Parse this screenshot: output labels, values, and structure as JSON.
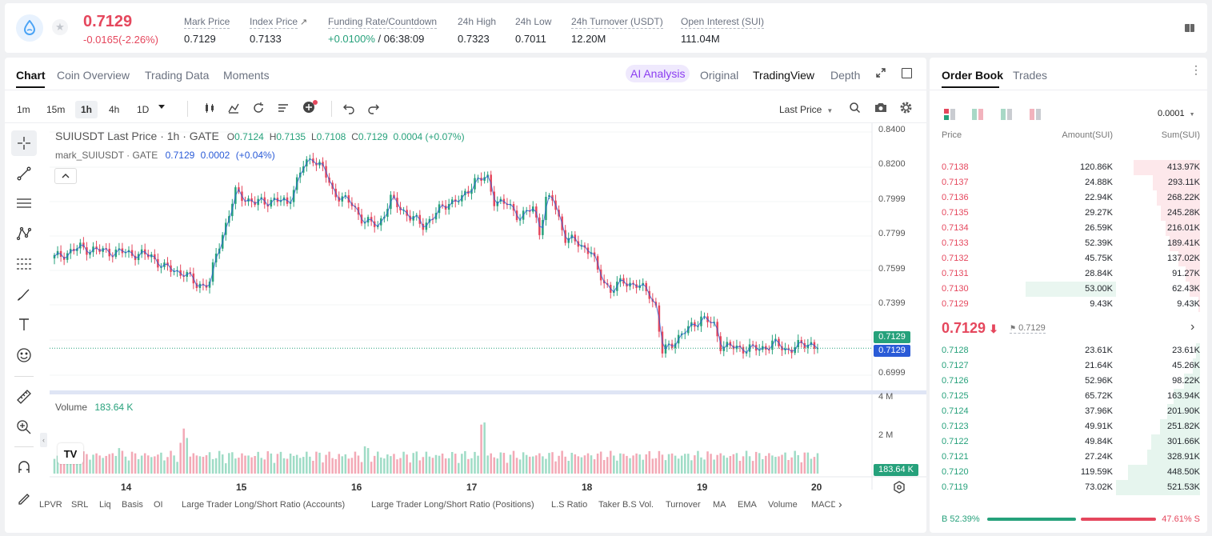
{
  "header": {
    "price": "0.7129",
    "change": "-0.0165(-2.26%)",
    "stats": [
      {
        "label": "Mark Price",
        "value": "0.7129"
      },
      {
        "label": "Index Price",
        "value": "0.7133"
      },
      {
        "label": "Funding Rate/Countdown",
        "value_a": "+0.0100%",
        "value_b": "/ 06:38:09"
      },
      {
        "label": "24h High",
        "value": "0.7323"
      },
      {
        "label": "24h Low",
        "value": "0.7011"
      },
      {
        "label": "24h Turnover (USDT)",
        "value": "12.20M"
      },
      {
        "label": "Open Interest (SUI)",
        "value": "111.04M"
      }
    ],
    "colors": {
      "up": "#26a17b",
      "down": "#e5475d",
      "accent": "#2a74e0"
    }
  },
  "chart_tabs": [
    "Chart",
    "Coin Overview",
    "Trading Data",
    "Moments"
  ],
  "view_tabs": {
    "ai": "AI Analysis",
    "original": "Original",
    "tradingview": "TradingView",
    "depth": "Depth"
  },
  "timeframes": [
    "1m",
    "15m",
    "1h",
    "4h",
    "1D"
  ],
  "price_type": "Last Price",
  "legend": {
    "title": "SUIUSDT Last Price · 1h · GATE",
    "o_label": "O",
    "o": "0.7124",
    "h_label": "H",
    "h": "0.7135",
    "l_label": "L",
    "l": "0.7108",
    "c_label": "C",
    "c": "0.7129",
    "chg": "0.0004 (+0.07%)",
    "mark_title": "mark_SUIUSDT · GATE",
    "mark_price": "0.7129",
    "mark_chg": "0.0002",
    "mark_pct": "(+0.04%)"
  },
  "price_axis": [
    "0.8400",
    "0.8200",
    "0.7999",
    "0.7799",
    "0.7599",
    "0.7399",
    "0.6999"
  ],
  "last_price_tag": "0.7129",
  "mark_price_tag": "0.7129",
  "volume": {
    "label": "Volume",
    "value": "183.64 K",
    "axis": [
      "4 M",
      "2 M"
    ],
    "tag": "183.64 K"
  },
  "days": [
    "14",
    "15",
    "16",
    "17",
    "18",
    "19",
    "20"
  ],
  "indicators": [
    "LPVR",
    "SRL",
    "Liq",
    "Basis",
    "OI",
    "Large Trader Long/Short Ratio (Accounts)",
    "Large Trader Long/Short Ratio (Positions)",
    "L.S Ratio",
    "Taker B.S Vol.",
    "Turnover",
    "MA",
    "EMA",
    "Volume",
    "MACD"
  ],
  "chart_data": {
    "type": "candlestick",
    "title": "SUIUSDT Last Price · 1h · GATE",
    "xlabels": [
      "14",
      "15",
      "16",
      "17",
      "18",
      "19",
      "20"
    ],
    "ylim": [
      0.69,
      0.845
    ],
    "path": [
      [
        0,
        0.766
      ],
      [
        8,
        0.772
      ],
      [
        14,
        0.77
      ],
      [
        22,
        0.769
      ],
      [
        30,
        0.767
      ],
      [
        34,
        0.76
      ],
      [
        40,
        0.757
      ],
      [
        44,
        0.75
      ],
      [
        48,
        0.751
      ],
      [
        50,
        0.768
      ],
      [
        56,
        0.804
      ],
      [
        62,
        0.798
      ],
      [
        68,
        0.8
      ],
      [
        72,
        0.798
      ],
      [
        77,
        0.82
      ],
      [
        80,
        0.825
      ],
      [
        83,
        0.818
      ],
      [
        86,
        0.805
      ],
      [
        92,
        0.797
      ],
      [
        96,
        0.787
      ],
      [
        100,
        0.785
      ],
      [
        104,
        0.8
      ],
      [
        106,
        0.797
      ],
      [
        110,
        0.79
      ],
      [
        114,
        0.785
      ],
      [
        118,
        0.792
      ],
      [
        122,
        0.799
      ],
      [
        126,
        0.8
      ],
      [
        130,
        0.812
      ],
      [
        134,
        0.812
      ],
      [
        136,
        0.8
      ],
      [
        140,
        0.797
      ],
      [
        144,
        0.79
      ],
      [
        148,
        0.795
      ],
      [
        150,
        0.782
      ],
      [
        152,
        0.8
      ],
      [
        154,
        0.8
      ],
      [
        158,
        0.778
      ],
      [
        162,
        0.774
      ],
      [
        166,
        0.77
      ],
      [
        168,
        0.757
      ],
      [
        172,
        0.747
      ],
      [
        176,
        0.752
      ],
      [
        180,
        0.75
      ],
      [
        184,
        0.745
      ],
      [
        186,
        0.737
      ],
      [
        188,
        0.71
      ],
      [
        192,
        0.718
      ],
      [
        196,
        0.724
      ],
      [
        200,
        0.731
      ],
      [
        204,
        0.726
      ],
      [
        206,
        0.715
      ],
      [
        210,
        0.713
      ],
      [
        214,
        0.713
      ],
      [
        218,
        0.712
      ],
      [
        222,
        0.716
      ],
      [
        226,
        0.712
      ],
      [
        230,
        0.714
      ],
      [
        234,
        0.716
      ],
      [
        236,
        0.713
      ]
    ],
    "volume_ylim": [
      0,
      4.4
    ],
    "volume_peaks": [
      [
        20,
        1.6
      ],
      [
        40,
        2.9
      ],
      [
        96,
        1.9
      ],
      [
        132,
        3.6
      ]
    ],
    "last": 0.7129
  },
  "orderbook": {
    "tabs": [
      "Order Book",
      "Trades"
    ],
    "precision": "0.0001",
    "headers": [
      "Price",
      "Amount(SUI)",
      "Sum(SUI)"
    ],
    "asks": [
      {
        "price": "0.7138",
        "amount": "120.86K",
        "sum": "413.97K",
        "depth": 0.79
      },
      {
        "price": "0.7137",
        "amount": "24.88K",
        "sum": "293.11K",
        "depth": 0.56
      },
      {
        "price": "0.7136",
        "amount": "22.94K",
        "sum": "268.22K",
        "depth": 0.51
      },
      {
        "price": "0.7135",
        "amount": "29.27K",
        "sum": "245.28K",
        "depth": 0.47
      },
      {
        "price": "0.7134",
        "amount": "26.59K",
        "sum": "216.01K",
        "depth": 0.41
      },
      {
        "price": "0.7133",
        "amount": "52.39K",
        "sum": "189.41K",
        "depth": 0.36
      },
      {
        "price": "0.7132",
        "amount": "45.75K",
        "sum": "137.02K",
        "depth": 0.26
      },
      {
        "price": "0.7131",
        "amount": "28.84K",
        "sum": "91.27K",
        "depth": 0.17
      },
      {
        "price": "0.7130",
        "amount": "53.00K",
        "sum": "62.43K",
        "depth": 0.12,
        "highlight": true
      },
      {
        "price": "0.7129",
        "amount": "9.43K",
        "sum": "9.43K",
        "depth": 0.02
      }
    ],
    "last_price": "0.7129",
    "mark_price": "0.7129",
    "bids": [
      {
        "price": "0.7128",
        "amount": "23.61K",
        "sum": "23.61K",
        "depth": 0.05
      },
      {
        "price": "0.7127",
        "amount": "21.64K",
        "sum": "45.26K",
        "depth": 0.09
      },
      {
        "price": "0.7126",
        "amount": "52.96K",
        "sum": "98.22K",
        "depth": 0.19
      },
      {
        "price": "0.7125",
        "amount": "65.72K",
        "sum": "163.94K",
        "depth": 0.31
      },
      {
        "price": "0.7124",
        "amount": "37.96K",
        "sum": "201.90K",
        "depth": 0.39
      },
      {
        "price": "0.7123",
        "amount": "49.91K",
        "sum": "251.82K",
        "depth": 0.48
      },
      {
        "price": "0.7122",
        "amount": "49.84K",
        "sum": "301.66K",
        "depth": 0.58
      },
      {
        "price": "0.7121",
        "amount": "27.24K",
        "sum": "328.91K",
        "depth": 0.63
      },
      {
        "price": "0.7120",
        "amount": "119.59K",
        "sum": "448.50K",
        "depth": 0.86
      },
      {
        "price": "0.7119",
        "amount": "73.02K",
        "sum": "521.53K",
        "depth": 1.0
      }
    ],
    "buy_pct": "B 52.39%",
    "sell_pct": "47.61% S",
    "buy_ratio": 0.5239
  }
}
